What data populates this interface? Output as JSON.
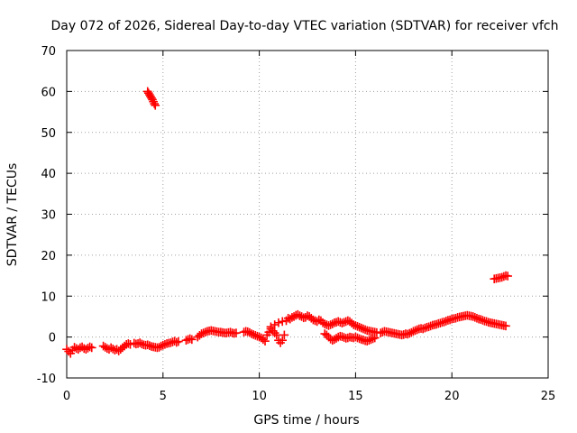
{
  "chart_data": {
    "type": "scatter",
    "title": "Day 072 of 2026, Sidereal Day-to-day VTEC variation (SDTVAR) for receiver vfch",
    "xlabel": "GPS time / hours",
    "ylabel": "SDTVAR / TECUs",
    "xlim": [
      0,
      25
    ],
    "ylim": [
      -10,
      70
    ],
    "x_ticks": [
      0,
      5,
      10,
      15,
      20,
      25
    ],
    "y_ticks": [
      -10,
      0,
      10,
      20,
      30,
      40,
      50,
      60,
      70
    ],
    "x_tick_labels": [
      "0",
      "5",
      "10",
      "15",
      "20",
      "25"
    ],
    "y_tick_labels": [
      "-10",
      "0",
      "10",
      "20",
      "30",
      "40",
      "50",
      "60",
      "70"
    ],
    "grid": true,
    "marker": "plus",
    "color": "#ff0000",
    "series": [
      {
        "name": "SDTVAR",
        "points": [
          [
            0.0,
            -3.0
          ],
          [
            0.1,
            -3.5
          ],
          [
            0.2,
            -4.0
          ],
          [
            0.3,
            -3.2
          ],
          [
            0.4,
            -2.5
          ],
          [
            0.5,
            -2.8
          ],
          [
            0.6,
            -3.0
          ],
          [
            0.7,
            -2.6
          ],
          [
            0.8,
            -2.4
          ],
          [
            0.9,
            -2.8
          ],
          [
            1.0,
            -3.0
          ],
          [
            1.1,
            -2.7
          ],
          [
            1.2,
            -2.4
          ],
          [
            1.3,
            -2.6
          ],
          [
            1.9,
            -2.2
          ],
          [
            2.0,
            -2.5
          ],
          [
            2.1,
            -2.8
          ],
          [
            2.2,
            -3.0
          ],
          [
            2.3,
            -2.6
          ],
          [
            2.4,
            -2.9
          ],
          [
            2.5,
            -3.2
          ],
          [
            2.6,
            -3.0
          ],
          [
            2.7,
            -3.4
          ],
          [
            2.8,
            -3.0
          ],
          [
            2.9,
            -2.6
          ],
          [
            3.0,
            -2.2
          ],
          [
            3.1,
            -1.8
          ],
          [
            3.2,
            -1.6
          ],
          [
            3.3,
            -1.8
          ],
          [
            3.5,
            -1.5
          ],
          [
            3.6,
            -1.7
          ],
          [
            3.7,
            -1.6
          ],
          [
            3.8,
            -1.4
          ],
          [
            3.9,
            -1.7
          ],
          [
            4.0,
            -1.9
          ],
          [
            4.1,
            -2.0
          ],
          [
            4.2,
            -1.9
          ],
          [
            4.3,
            -2.1
          ],
          [
            4.4,
            -2.3
          ],
          [
            4.5,
            -2.4
          ],
          [
            4.6,
            -2.5
          ],
          [
            4.7,
            -2.6
          ],
          [
            4.8,
            -2.5
          ],
          [
            4.9,
            -2.2
          ],
          [
            5.0,
            -2.0
          ],
          [
            5.1,
            -1.8
          ],
          [
            5.2,
            -1.6
          ],
          [
            5.3,
            -1.5
          ],
          [
            5.4,
            -1.4
          ],
          [
            5.5,
            -1.2
          ],
          [
            5.6,
            -1.0
          ],
          [
            5.7,
            -1.3
          ],
          [
            5.8,
            -1.1
          ],
          [
            6.2,
            -0.8
          ],
          [
            6.3,
            -0.6
          ],
          [
            6.4,
            -0.4
          ],
          [
            6.5,
            -0.6
          ],
          [
            6.8,
            0.0
          ],
          [
            6.9,
            0.4
          ],
          [
            7.0,
            0.8
          ],
          [
            7.1,
            1.0
          ],
          [
            7.2,
            1.2
          ],
          [
            7.3,
            1.4
          ],
          [
            7.4,
            1.5
          ],
          [
            7.5,
            1.6
          ],
          [
            7.6,
            1.5
          ],
          [
            7.7,
            1.4
          ],
          [
            7.8,
            1.3
          ],
          [
            7.9,
            1.2
          ],
          [
            8.0,
            1.2
          ],
          [
            8.1,
            1.1
          ],
          [
            8.2,
            1.0
          ],
          [
            8.3,
            1.0
          ],
          [
            8.4,
            1.1
          ],
          [
            8.5,
            1.2
          ],
          [
            8.6,
            1.0
          ],
          [
            8.7,
            0.9
          ],
          [
            8.8,
            1.0
          ],
          [
            9.2,
            1.2
          ],
          [
            9.3,
            1.4
          ],
          [
            9.4,
            1.3
          ],
          [
            9.5,
            1.1
          ],
          [
            9.6,
            0.8
          ],
          [
            9.7,
            0.6
          ],
          [
            9.8,
            0.4
          ],
          [
            9.9,
            0.2
          ],
          [
            10.0,
            0.0
          ],
          [
            10.1,
            -0.2
          ],
          [
            10.2,
            -0.6
          ],
          [
            10.3,
            -1.0
          ],
          [
            10.4,
            0.5
          ],
          [
            10.5,
            1.2
          ],
          [
            10.6,
            2.0
          ],
          [
            10.7,
            1.5
          ],
          [
            10.8,
            1.0
          ],
          [
            10.9,
            0.5
          ],
          [
            11.0,
            -0.8
          ],
          [
            11.1,
            -1.4
          ],
          [
            11.2,
            -0.8
          ],
          [
            11.3,
            0.5
          ],
          [
            10.6,
            2.5
          ],
          [
            10.8,
            3.0
          ],
          [
            11.0,
            3.5
          ],
          [
            11.2,
            3.8
          ],
          [
            11.4,
            4.0
          ],
          [
            11.5,
            4.6
          ],
          [
            11.6,
            4.4
          ],
          [
            11.7,
            4.8
          ],
          [
            11.8,
            5.0
          ],
          [
            11.9,
            5.3
          ],
          [
            12.0,
            5.5
          ],
          [
            12.1,
            5.2
          ],
          [
            12.2,
            5.0
          ],
          [
            12.3,
            4.7
          ],
          [
            12.4,
            4.8
          ],
          [
            12.5,
            5.2
          ],
          [
            12.6,
            5.0
          ],
          [
            12.7,
            4.6
          ],
          [
            12.8,
            4.2
          ],
          [
            12.9,
            4.0
          ],
          [
            13.0,
            3.8
          ],
          [
            13.1,
            4.2
          ],
          [
            13.2,
            4.0
          ],
          [
            13.3,
            3.5
          ],
          [
            13.4,
            3.2
          ],
          [
            13.5,
            3.0
          ],
          [
            13.6,
            2.8
          ],
          [
            13.7,
            3.0
          ],
          [
            13.8,
            3.2
          ],
          [
            13.9,
            3.5
          ],
          [
            14.0,
            3.6
          ],
          [
            14.1,
            3.8
          ],
          [
            14.2,
            3.6
          ],
          [
            14.3,
            3.4
          ],
          [
            14.4,
            3.6
          ],
          [
            14.5,
            3.8
          ],
          [
            14.6,
            4.0
          ],
          [
            14.7,
            3.8
          ],
          [
            14.8,
            3.4
          ],
          [
            14.9,
            3.0
          ],
          [
            15.0,
            2.8
          ],
          [
            15.1,
            2.6
          ],
          [
            15.2,
            2.4
          ],
          [
            15.3,
            2.2
          ],
          [
            15.4,
            2.0
          ],
          [
            15.5,
            1.8
          ],
          [
            15.6,
            1.6
          ],
          [
            15.7,
            1.5
          ],
          [
            15.8,
            1.4
          ],
          [
            15.9,
            1.3
          ],
          [
            16.0,
            1.2
          ],
          [
            16.1,
            1.1
          ],
          [
            13.4,
            0.8
          ],
          [
            13.5,
            0.5
          ],
          [
            13.6,
            0.0
          ],
          [
            13.7,
            -0.5
          ],
          [
            13.8,
            -0.8
          ],
          [
            13.9,
            -0.6
          ],
          [
            14.0,
            -0.3
          ],
          [
            14.1,
            0.0
          ],
          [
            14.2,
            0.2
          ],
          [
            14.3,
            0.1
          ],
          [
            14.4,
            -0.1
          ],
          [
            14.5,
            -0.3
          ],
          [
            14.6,
            -0.2
          ],
          [
            14.7,
            0.0
          ],
          [
            14.8,
            -0.1
          ],
          [
            14.9,
            -0.2
          ],
          [
            15.0,
            0.0
          ],
          [
            15.1,
            -0.2
          ],
          [
            15.2,
            -0.4
          ],
          [
            15.3,
            -0.6
          ],
          [
            15.4,
            -0.7
          ],
          [
            15.5,
            -0.9
          ],
          [
            15.6,
            -1.0
          ],
          [
            15.7,
            -0.8
          ],
          [
            15.8,
            -0.6
          ],
          [
            15.9,
            -0.4
          ],
          [
            16.0,
            -0.2
          ],
          [
            16.3,
            1.0
          ],
          [
            16.4,
            1.2
          ],
          [
            16.5,
            1.4
          ],
          [
            16.6,
            1.3
          ],
          [
            16.7,
            1.2
          ],
          [
            16.8,
            1.1
          ],
          [
            16.9,
            1.0
          ],
          [
            17.0,
            0.9
          ],
          [
            17.1,
            0.8
          ],
          [
            17.2,
            0.7
          ],
          [
            17.3,
            0.6
          ],
          [
            17.4,
            0.5
          ],
          [
            17.5,
            0.6
          ],
          [
            17.6,
            0.8
          ],
          [
            17.7,
            0.7
          ],
          [
            17.8,
            0.9
          ],
          [
            17.9,
            1.1
          ],
          [
            18.0,
            1.4
          ],
          [
            18.1,
            1.6
          ],
          [
            18.2,
            1.8
          ],
          [
            18.3,
            2.0
          ],
          [
            18.4,
            2.1
          ],
          [
            18.5,
            2.0
          ],
          [
            18.6,
            2.2
          ],
          [
            18.7,
            2.4
          ],
          [
            18.8,
            2.5
          ],
          [
            18.9,
            2.7
          ],
          [
            19.0,
            2.9
          ],
          [
            19.1,
            3.0
          ],
          [
            19.2,
            3.1
          ],
          [
            19.3,
            3.3
          ],
          [
            19.4,
            3.4
          ],
          [
            19.5,
            3.6
          ],
          [
            19.6,
            3.7
          ],
          [
            19.7,
            3.9
          ],
          [
            19.8,
            4.1
          ],
          [
            19.9,
            4.2
          ],
          [
            20.0,
            4.4
          ],
          [
            20.1,
            4.5
          ],
          [
            20.2,
            4.6
          ],
          [
            20.3,
            4.8
          ],
          [
            20.4,
            4.9
          ],
          [
            20.5,
            5.0
          ],
          [
            20.6,
            5.1
          ],
          [
            20.7,
            5.2
          ],
          [
            20.8,
            5.3
          ],
          [
            20.9,
            5.2
          ],
          [
            21.0,
            5.1
          ],
          [
            21.1,
            5.0
          ],
          [
            21.2,
            4.8
          ],
          [
            21.3,
            4.6
          ],
          [
            21.4,
            4.4
          ],
          [
            21.5,
            4.3
          ],
          [
            21.6,
            4.1
          ],
          [
            21.7,
            3.9
          ],
          [
            21.8,
            3.8
          ],
          [
            21.9,
            3.6
          ],
          [
            22.0,
            3.5
          ],
          [
            22.1,
            3.4
          ],
          [
            22.2,
            3.3
          ],
          [
            22.3,
            3.2
          ],
          [
            22.4,
            3.1
          ],
          [
            22.5,
            3.0
          ],
          [
            22.6,
            2.9
          ],
          [
            22.7,
            2.8
          ],
          [
            22.8,
            2.7
          ],
          [
            4.2,
            60.0
          ],
          [
            4.25,
            59.6
          ],
          [
            4.3,
            59.2
          ],
          [
            4.35,
            58.8
          ],
          [
            4.4,
            58.4
          ],
          [
            4.45,
            58.0
          ],
          [
            4.5,
            57.5
          ],
          [
            4.55,
            57.0
          ],
          [
            4.6,
            56.6
          ],
          [
            22.2,
            14.2
          ],
          [
            22.3,
            14.3
          ],
          [
            22.4,
            14.4
          ],
          [
            22.5,
            14.5
          ],
          [
            22.6,
            14.6
          ],
          [
            22.7,
            14.8
          ],
          [
            22.8,
            15.0
          ],
          [
            22.9,
            14.9
          ]
        ]
      }
    ]
  }
}
